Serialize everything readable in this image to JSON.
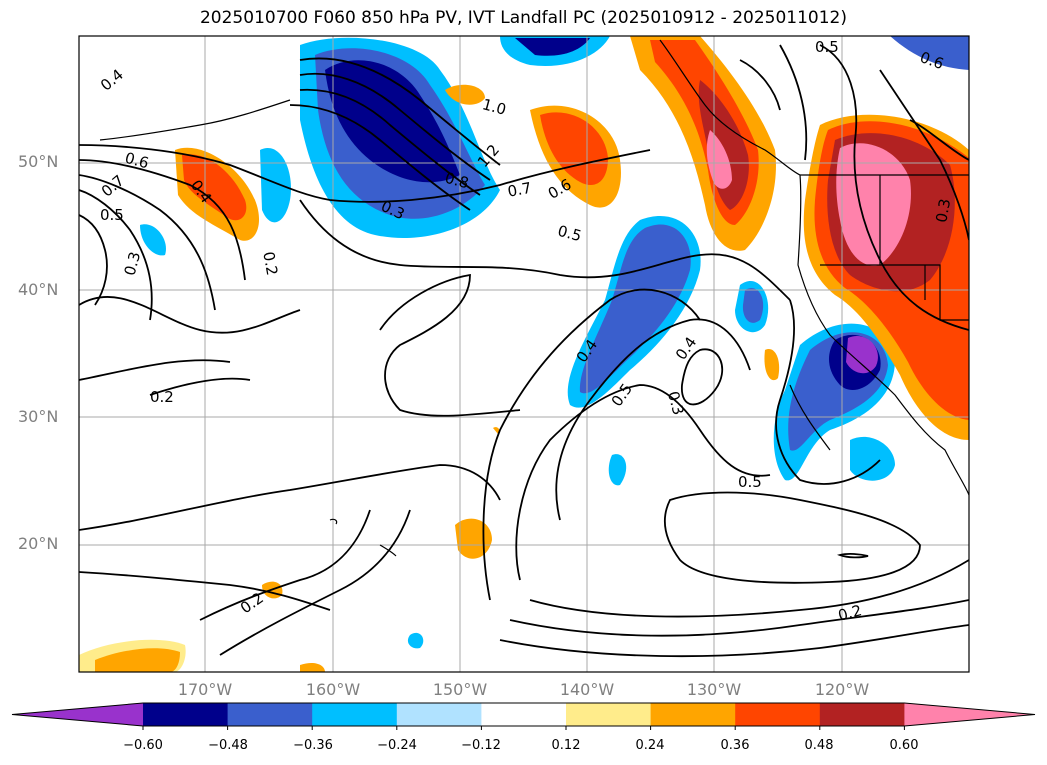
{
  "title": "2025010700 F060 850 hPa PV, IVT Landfall PC (2025010912 - 2025011012)",
  "lat_labels": [
    "50°N",
    "40°N",
    "30°N",
    "20°N"
  ],
  "lon_labels": [
    "170°W",
    "160°W",
    "150°W",
    "140°W",
    "130°W",
    "120°W"
  ],
  "colorbar": {
    "ticks": [
      "−0.60",
      "−0.48",
      "−0.36",
      "−0.24",
      "−0.12",
      "0.12",
      "0.24",
      "0.36",
      "0.48",
      "0.60"
    ],
    "colors": [
      "#9932cc",
      "#00008b",
      "#3a5fcd",
      "#00bfff",
      "#b0e2ff",
      "#ffffff",
      "#ffec8b",
      "#ffa500",
      "#ff4500",
      "#b22222",
      "#ff82ab"
    ]
  },
  "contour_labels": [
    "0.4",
    "0.6",
    "0.7",
    "0.5",
    "0.3",
    "0.4",
    "0.2",
    "0.3",
    "0.8",
    "1.2",
    "1.0",
    "0.7",
    "0.6",
    "0.5",
    "0.4",
    "0.5",
    "0.3",
    "0.4",
    "0.2",
    "0.5",
    "0.2",
    "0.2",
    "0.5",
    "0.6",
    "0.3"
  ]
}
